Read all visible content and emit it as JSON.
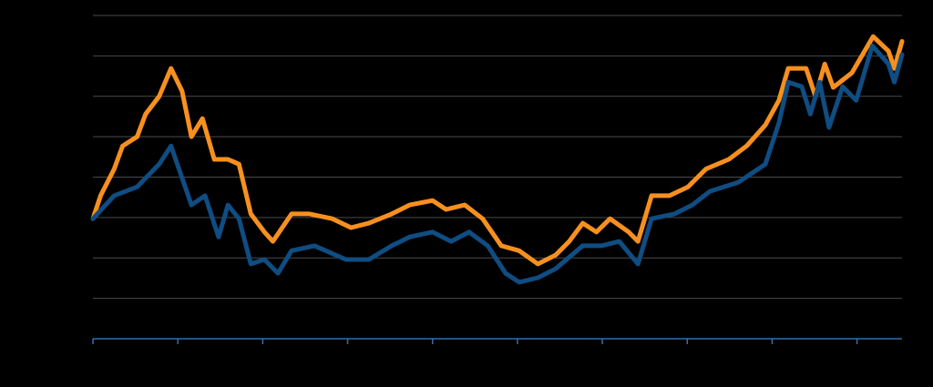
{
  "chart_data": {
    "type": "line",
    "series": [
      {
        "color": "#f7901e",
        "x": [
          0,
          0.09,
          0.25,
          0.35,
          0.52,
          0.62,
          0.78,
          0.92,
          1.05,
          1.16,
          1.29,
          1.43,
          1.59,
          1.72,
          1.86,
          2.02,
          2.12,
          2.34,
          2.55,
          2.82,
          3.04,
          3.25,
          3.52,
          3.73,
          4.0,
          4.16,
          4.38,
          4.59,
          4.81,
          5.02,
          5.24,
          5.45,
          5.61,
          5.77,
          5.93,
          6.09,
          6.31,
          6.42,
          6.58,
          6.79,
          7.01,
          7.22,
          7.49,
          7.7,
          7.92,
          8.08,
          8.19,
          8.4,
          8.51,
          8.62,
          8.72,
          8.94,
          9.19,
          9.37,
          9.44,
          9.53
        ],
        "values": [
          2.97,
          3.54,
          4.2,
          4.77,
          5.0,
          5.56,
          6.0,
          6.69,
          6.13,
          5.0,
          5.45,
          4.44,
          4.44,
          4.32,
          3.09,
          2.64,
          2.41,
          3.09,
          3.09,
          2.97,
          2.75,
          2.86,
          3.09,
          3.31,
          3.42,
          3.2,
          3.31,
          2.97,
          2.3,
          2.18,
          1.85,
          2.07,
          2.41,
          2.86,
          2.64,
          2.97,
          2.64,
          2.41,
          3.54,
          3.54,
          3.76,
          4.2,
          4.44,
          4.77,
          5.29,
          5.9,
          6.69,
          6.69,
          6.0,
          6.8,
          6.22,
          6.58,
          7.48,
          7.12,
          6.69,
          7.36
        ]
      },
      {
        "color": "#0f4d82",
        "x": [
          0,
          0.25,
          0.52,
          0.78,
          0.92,
          1.16,
          1.32,
          1.48,
          1.59,
          1.72,
          1.86,
          2.02,
          2.18,
          2.34,
          2.61,
          2.98,
          3.25,
          3.52,
          3.73,
          4.0,
          4.22,
          4.43,
          4.65,
          4.86,
          5.02,
          5.24,
          5.45,
          5.77,
          5.99,
          6.2,
          6.42,
          6.58,
          6.85,
          7.06,
          7.27,
          7.6,
          7.92,
          8.08,
          8.19,
          8.35,
          8.45,
          8.56,
          8.67,
          8.83,
          8.99,
          9.18,
          9.37,
          9.44,
          9.53
        ],
        "values": [
          2.97,
          3.54,
          3.76,
          4.32,
          4.77,
          3.31,
          3.54,
          2.52,
          3.31,
          2.97,
          1.85,
          1.96,
          1.62,
          2.18,
          2.3,
          1.96,
          1.96,
          2.3,
          2.52,
          2.64,
          2.41,
          2.64,
          2.3,
          1.62,
          1.4,
          1.51,
          1.73,
          2.3,
          2.3,
          2.41,
          1.85,
          2.97,
          3.09,
          3.31,
          3.65,
          3.87,
          4.32,
          5.34,
          6.35,
          6.24,
          5.56,
          6.35,
          5.23,
          6.24,
          5.9,
          7.25,
          6.8,
          6.35,
          7.03
        ]
      }
    ],
    "xlim": [
      0,
      9.53
    ],
    "xticks": [
      0,
      1,
      2,
      3,
      4,
      5,
      6,
      7,
      8,
      9
    ],
    "ylim": [
      0,
      8
    ],
    "yticks": [
      1,
      2,
      3,
      4,
      5,
      6,
      7,
      8
    ],
    "grid": true,
    "axis_color": "#2f6fb0",
    "grid_color": "#4a4a4a"
  }
}
